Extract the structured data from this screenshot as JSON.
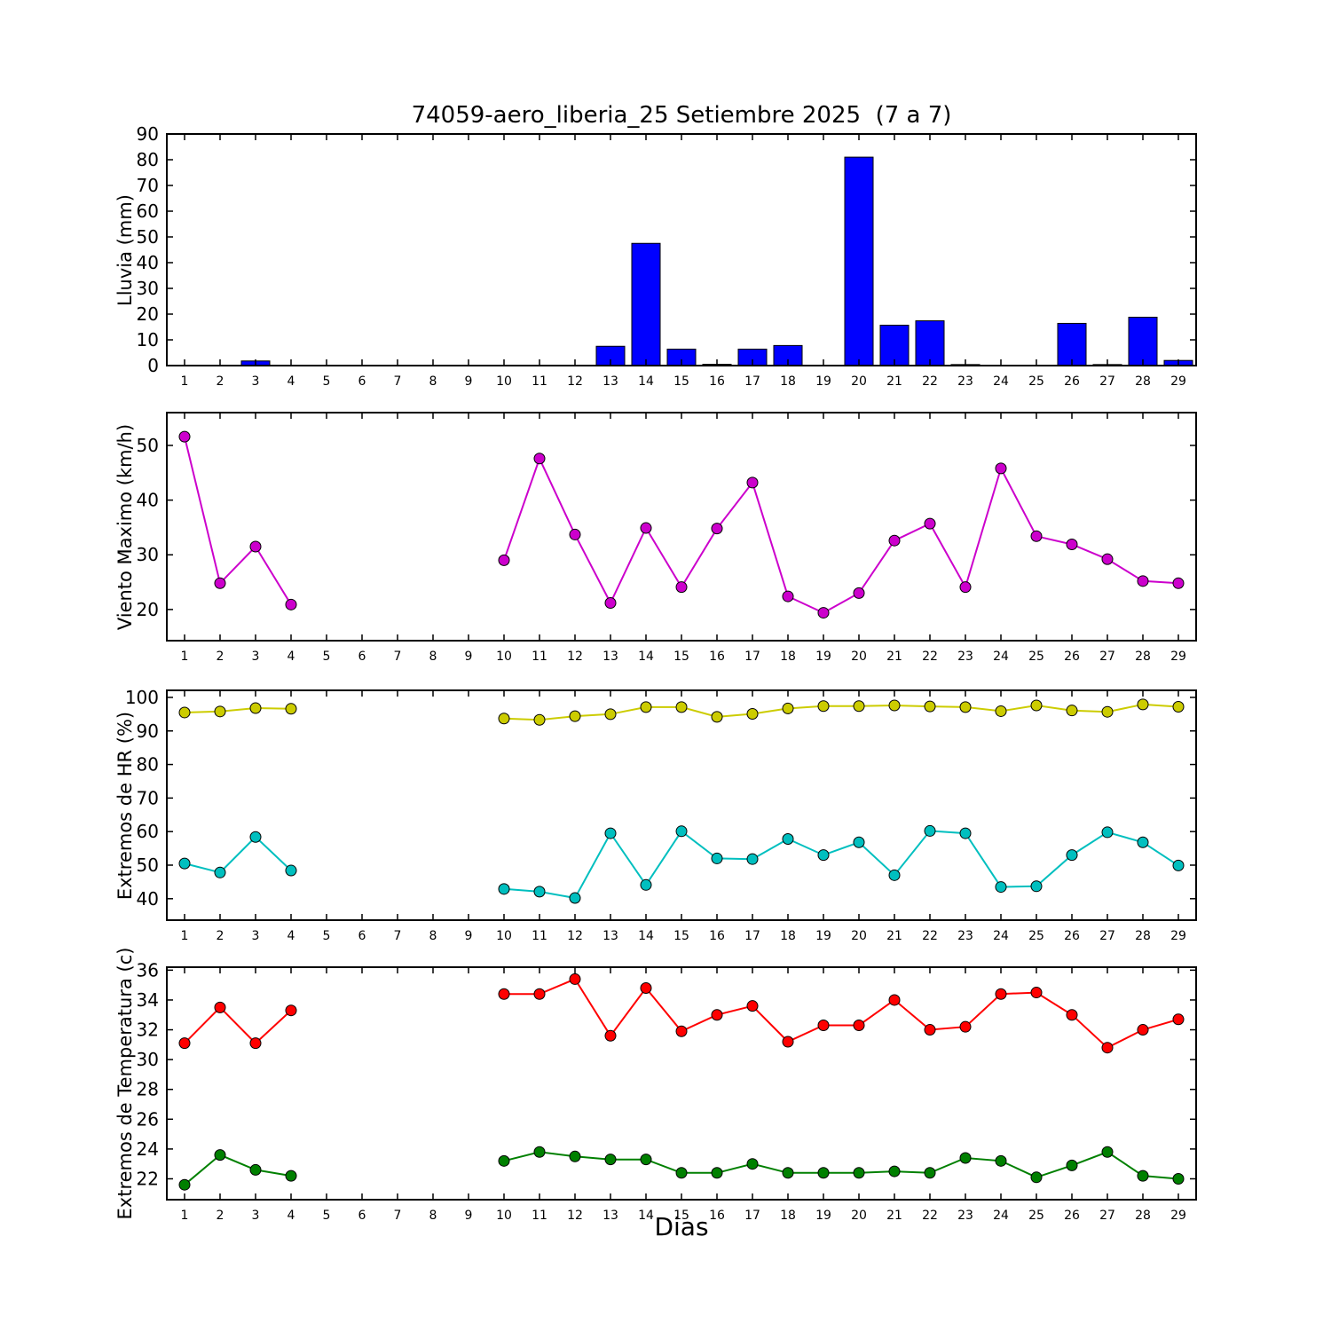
{
  "title": "74059-aero_liberia_25 Setiembre 2025  (7 a 7)",
  "xlabel": "Dias",
  "days": [
    1,
    2,
    3,
    4,
    5,
    6,
    7,
    8,
    9,
    10,
    11,
    12,
    13,
    14,
    15,
    16,
    17,
    18,
    19,
    20,
    21,
    22,
    23,
    24,
    25,
    26,
    27,
    28,
    29
  ],
  "colors": {
    "rain_bar": "#0000ff",
    "wind_line": "#cc00cc",
    "hr_max_line": "#cccc00",
    "hr_min_line": "#00bfbf",
    "temp_max_line": "#ff0000",
    "temp_min_line": "#008000",
    "axis": "#000000",
    "background": "#ffffff"
  },
  "chart_data": [
    {
      "type": "bar",
      "name": "lluvia",
      "ylabel": "Lluvia (mm)",
      "ylim": [
        0,
        90
      ],
      "yticks": [
        0,
        10,
        20,
        30,
        40,
        50,
        60,
        70,
        80,
        90
      ],
      "bar_color": "#0000ff",
      "bar_width": 0.8,
      "values": [
        0,
        0,
        1.8,
        0,
        0,
        0,
        0,
        0,
        0,
        0,
        0,
        0,
        7.5,
        47.5,
        6.4,
        0.5,
        6.4,
        7.8,
        0,
        81,
        15.7,
        17.4,
        0.4,
        0,
        0,
        16.4,
        0.4,
        18.8,
        2.0
      ]
    },
    {
      "type": "line",
      "name": "viento",
      "ylabel": "Viento Maximo (km/h)",
      "ylim": [
        14.3,
        56.0
      ],
      "yticks": [
        20,
        30,
        40,
        50
      ],
      "series": [
        {
          "name": "viento_maximo",
          "color": "#cc00cc",
          "values": [
            51.6,
            24.8,
            31.5,
            20.9,
            null,
            null,
            null,
            null,
            null,
            29.0,
            47.6,
            33.7,
            21.2,
            34.9,
            24.1,
            34.8,
            43.2,
            22.4,
            19.4,
            23.0,
            32.6,
            35.7,
            24.1,
            45.8,
            33.4,
            31.9,
            29.2,
            25.2,
            24.8
          ]
        }
      ]
    },
    {
      "type": "line",
      "name": "hr",
      "ylabel": "Extremos de HR (%)",
      "ylim": [
        33.6,
        102.1
      ],
      "yticks": [
        40,
        50,
        60,
        70,
        80,
        90,
        100
      ],
      "series": [
        {
          "name": "hr_maxima",
          "color": "#cccc00",
          "values": [
            95.5,
            95.8,
            96.8,
            96.6,
            null,
            null,
            null,
            null,
            null,
            93.7,
            93.3,
            94.4,
            95.0,
            97.1,
            97.1,
            94.2,
            95.1,
            96.7,
            97.4,
            97.4,
            97.6,
            97.3,
            97.1,
            95.9,
            97.6,
            96.1,
            95.7,
            97.9,
            97.2
          ]
        },
        {
          "name": "hr_minima",
          "color": "#00bfbf",
          "values": [
            50.5,
            47.8,
            58.4,
            48.4,
            null,
            null,
            null,
            null,
            null,
            42.9,
            42.1,
            40.2,
            59.5,
            44.1,
            60.1,
            52.0,
            51.8,
            57.8,
            53.0,
            56.8,
            47.0,
            60.2,
            59.5,
            43.5,
            43.7,
            53.0,
            59.8,
            56.8,
            49.9
          ]
        }
      ]
    },
    {
      "type": "line",
      "name": "temperatura",
      "ylabel": "Extremos de Temperatura (c)",
      "ylim": [
        20.6,
        36.2
      ],
      "yticks": [
        22,
        24,
        26,
        28,
        30,
        32,
        34,
        36
      ],
      "series": [
        {
          "name": "temp_maxima",
          "color": "#ff0000",
          "values": [
            31.1,
            33.5,
            31.1,
            33.3,
            null,
            null,
            null,
            null,
            null,
            34.4,
            34.4,
            35.4,
            31.6,
            34.8,
            31.9,
            33.0,
            33.6,
            31.2,
            32.3,
            32.3,
            34.0,
            32.0,
            32.2,
            34.4,
            34.5,
            33.0,
            30.8,
            32.0,
            32.7
          ]
        },
        {
          "name": "temp_minima",
          "color": "#008000",
          "values": [
            21.6,
            23.6,
            22.6,
            22.2,
            null,
            null,
            null,
            null,
            null,
            23.2,
            23.8,
            23.5,
            23.3,
            23.3,
            22.4,
            22.4,
            23.0,
            22.4,
            22.4,
            22.4,
            22.5,
            22.4,
            23.4,
            23.2,
            22.1,
            22.9,
            23.8,
            22.2,
            22.0
          ]
        }
      ]
    }
  ]
}
